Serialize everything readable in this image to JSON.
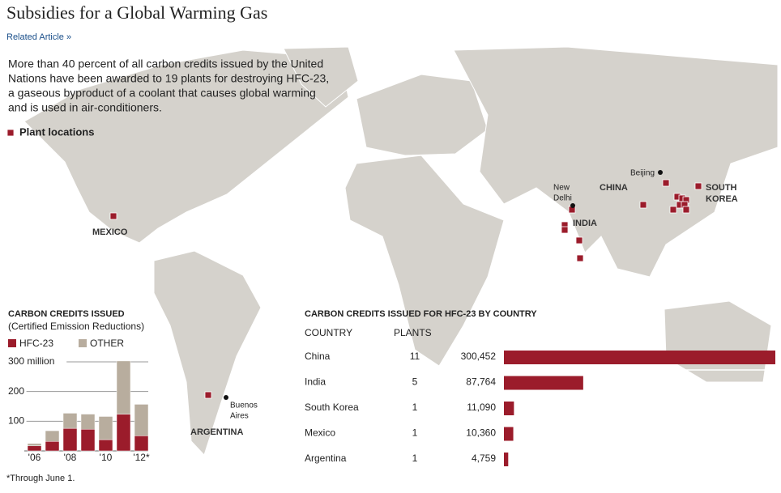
{
  "header": {
    "title": "Subsidies for a Global Warming Gas",
    "link": "Related Article »",
    "intro": [
      "More than 40 percent of all carbon credits issued by the United",
      "Nations have been awarded to 19 plants for destroying HFC-23,",
      "a gaseous byproduct of a coolant that causes global warming",
      "and is used in air-conditioners."
    ]
  },
  "map": {
    "legend": "Plant locations",
    "countries": [
      "MEXICO",
      "CHINA",
      "INDIA",
      "SOUTH",
      "KOREA",
      "ARGENTINA"
    ],
    "cities": [
      "New",
      "Delhi",
      "Beijing",
      "Buenos",
      "Aires"
    ]
  },
  "chart_data": [
    {
      "type": "bar",
      "stacked": true,
      "title": "CARBON CREDITS ISSUED",
      "subtitle": "(Certified Emission Reductions)",
      "categories": [
        "'06",
        null,
        "'08",
        null,
        "'10",
        null,
        "'12*"
      ],
      "series": [
        {
          "name": "HFC-23",
          "color": "#9b1c2b",
          "values": [
            17,
            32,
            76,
            73,
            38,
            124,
            51
          ]
        },
        {
          "name": "OTHER",
          "color": "#b8ad9e",
          "values": [
            8,
            36,
            51,
            51,
            78,
            179,
            106
          ]
        }
      ],
      "ylim": [
        0,
        310
      ],
      "yticks": [
        {
          "value": 300,
          "label": "300 million"
        },
        200,
        100
      ]
    },
    {
      "type": "table-bar",
      "title": "CARBON CREDITS ISSUED FOR HFC-23 BY COUNTRY",
      "columns": [
        "COUNTRY",
        "PLANTS"
      ],
      "categories": [
        "China",
        "India",
        "South Korea",
        "Mexico",
        "Argentina"
      ],
      "plants": [
        11,
        5,
        1,
        1,
        1
      ],
      "values": [
        300452,
        87764,
        11090,
        10360,
        4759
      ],
      "value_labels": [
        "300,452",
        "87,764",
        "11,090",
        "10,360",
        "4,759"
      ],
      "color": "#9b1c2b",
      "xlim": [
        0,
        300452
      ]
    }
  ],
  "footnote": "*Through June 1."
}
